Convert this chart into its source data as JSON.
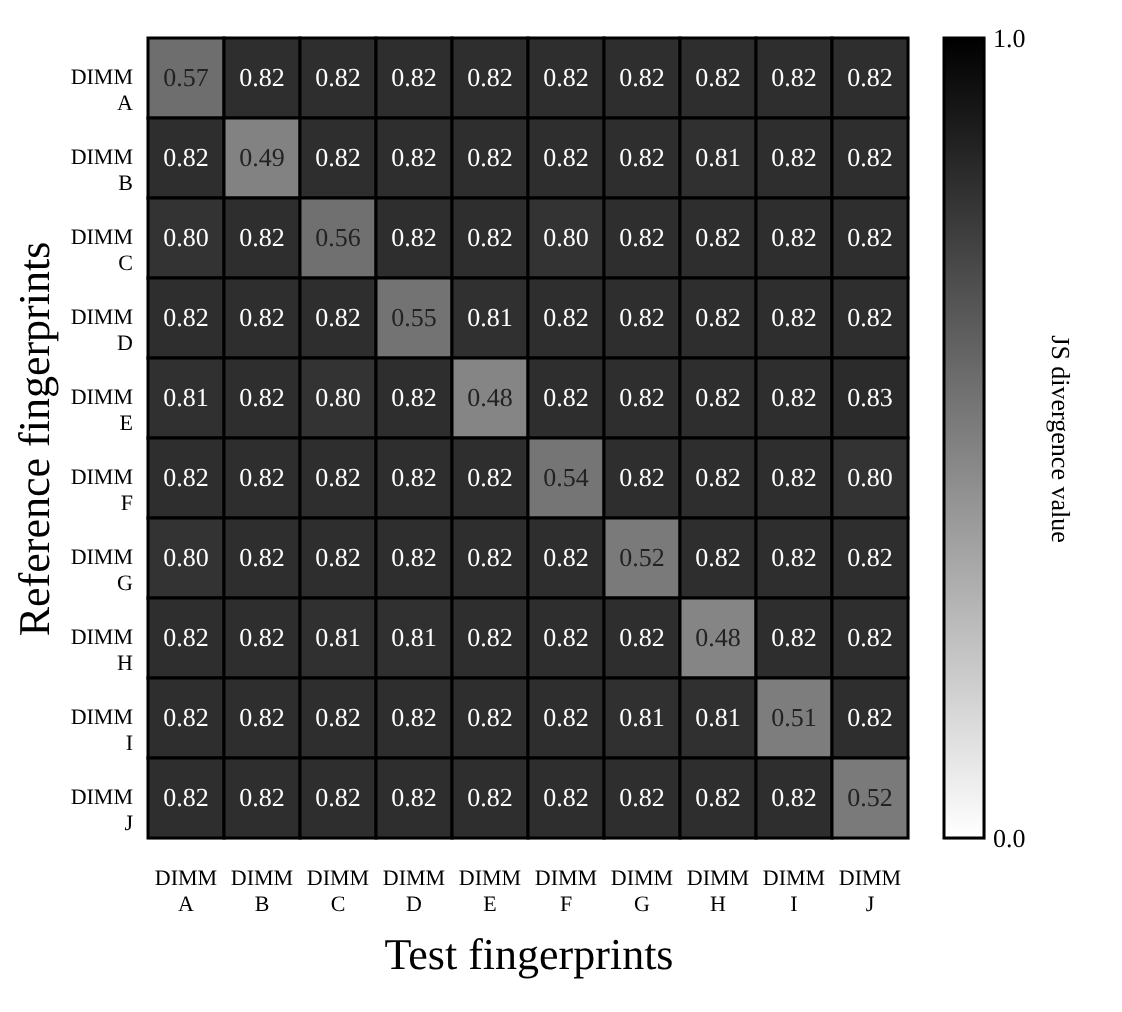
{
  "chart_data": {
    "type": "heatmap",
    "xlabel": "Test fingerprints",
    "ylabel": "Reference fingerprints",
    "clabel": "JS divergence value",
    "categories": [
      "DIMM A",
      "DIMM B",
      "DIMM C",
      "DIMM D",
      "DIMM E",
      "DIMM F",
      "DIMM G",
      "DIMM H",
      "DIMM I",
      "DIMM J"
    ],
    "y_categories": [
      "DIMM A",
      "DIMM B",
      "DIMM C",
      "DIMM D",
      "DIMM E",
      "DIMM F",
      "DIMM G",
      "DIMM H",
      "DIMM I",
      "DIMM J"
    ],
    "cells": [
      [
        0.57,
        0.82,
        0.82,
        0.82,
        0.82,
        0.82,
        0.82,
        0.82,
        0.82,
        0.82
      ],
      [
        0.82,
        0.49,
        0.82,
        0.82,
        0.82,
        0.82,
        0.82,
        0.81,
        0.82,
        0.82
      ],
      [
        0.8,
        0.82,
        0.56,
        0.82,
        0.82,
        0.8,
        0.82,
        0.82,
        0.82,
        0.82
      ],
      [
        0.82,
        0.82,
        0.82,
        0.55,
        0.81,
        0.82,
        0.82,
        0.82,
        0.82,
        0.82
      ],
      [
        0.81,
        0.82,
        0.8,
        0.82,
        0.48,
        0.82,
        0.82,
        0.82,
        0.82,
        0.83
      ],
      [
        0.82,
        0.82,
        0.82,
        0.82,
        0.82,
        0.54,
        0.82,
        0.82,
        0.82,
        0.8
      ],
      [
        0.8,
        0.82,
        0.82,
        0.82,
        0.82,
        0.82,
        0.52,
        0.82,
        0.82,
        0.82
      ],
      [
        0.82,
        0.82,
        0.81,
        0.81,
        0.82,
        0.82,
        0.82,
        0.48,
        0.82,
        0.82
      ],
      [
        0.82,
        0.82,
        0.82,
        0.82,
        0.82,
        0.82,
        0.81,
        0.81,
        0.51,
        0.82
      ],
      [
        0.82,
        0.82,
        0.82,
        0.82,
        0.82,
        0.82,
        0.82,
        0.82,
        0.82,
        0.52
      ]
    ],
    "cell_labels": [
      [
        "0.57",
        "0.82",
        "0.82",
        "0.82",
        "0.82",
        "0.82",
        "0.82",
        "0.82",
        "0.82",
        "0.82"
      ],
      [
        "0.82",
        "0.49",
        "0.82",
        "0.82",
        "0.82",
        "0.82",
        "0.82",
        "0.81",
        "0.82",
        "0.82"
      ],
      [
        "0.80",
        "0.82",
        "0.56",
        "0.82",
        "0.82",
        "0.80",
        "0.82",
        "0.82",
        "0.82",
        "0.82"
      ],
      [
        "0.82",
        "0.82",
        "0.82",
        "0.55",
        "0.81",
        "0.82",
        "0.82",
        "0.82",
        "0.82",
        "0.82"
      ],
      [
        "0.81",
        "0.82",
        "0.80",
        "0.82",
        "0.48",
        "0.82",
        "0.82",
        "0.82",
        "0.82",
        "0.83"
      ],
      [
        "0.82",
        "0.82",
        "0.82",
        "0.82",
        "0.82",
        "0.54",
        "0.82",
        "0.82",
        "0.82",
        "0.80"
      ],
      [
        "0.80",
        "0.82",
        "0.82",
        "0.82",
        "0.82",
        "0.82",
        "0.52",
        "0.82",
        "0.82",
        "0.82"
      ],
      [
        "0.82",
        "0.82",
        "0.81",
        "0.81",
        "0.82",
        "0.82",
        "0.82",
        "0.48",
        "0.82",
        "0.82"
      ],
      [
        "0.82",
        "0.82",
        "0.82",
        "0.82",
        "0.82",
        "0.82",
        "0.81",
        "0.81",
        "0.51",
        "0.82"
      ],
      [
        "0.82",
        "0.82",
        "0.82",
        "0.82",
        "0.82",
        "0.82",
        "0.82",
        "0.82",
        "0.82",
        "0.52"
      ]
    ],
    "clim": [
      0.0,
      1.0
    ],
    "cticks": [
      {
        "value": 0.0,
        "label": "0.0"
      },
      {
        "value": 1.0,
        "label": "1.0"
      }
    ],
    "data_labels": true
  }
}
